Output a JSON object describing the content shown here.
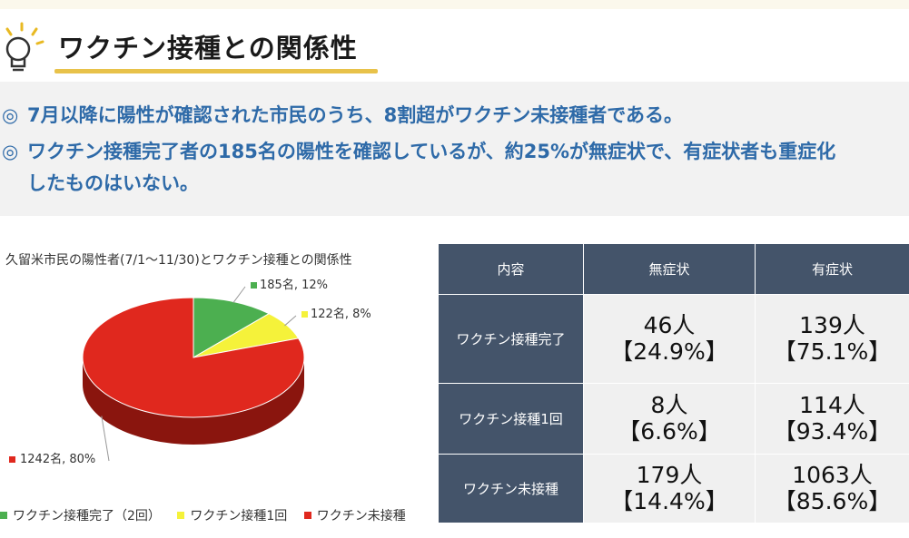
{
  "header": {
    "title": "ワクチン接種との関係性"
  },
  "summary": {
    "bullet_mark": "◎",
    "line1": "7月以降に陽性が確認された市民のうち、8割超がワクチン未接種者である。",
    "line2": "ワクチン接種完了者の185名の陽性を確認しているが、約25%が無症状で、有症状者も重症化",
    "line2_cont": "したものはいない。"
  },
  "chart_data": {
    "type": "pie",
    "title": "久留米市民の陽性者(7/1～11/30)とワクチン接種との関係性",
    "categories": [
      "ワクチン接種完了（2回）",
      "ワクチン接種1回",
      "ワクチン未接種"
    ],
    "values": [
      185,
      122,
      1242
    ],
    "percents": [
      12,
      8,
      80
    ],
    "data_labels": [
      "185名, 12%",
      "122名, 8%",
      "1242名, 80%"
    ],
    "colors": [
      "#4caf50",
      "#f5f23a",
      "#e0281e"
    ],
    "legend_position": "bottom",
    "style": "3d"
  },
  "table": {
    "headers": [
      "内容",
      "無症状",
      "有症状"
    ],
    "rows": [
      {
        "label": "ワクチン接種完了",
        "asym_count": "46人",
        "asym_pct": "【24.9%】",
        "sym_count": "139人",
        "sym_pct": "【75.1%】"
      },
      {
        "label": "ワクチン接種1回",
        "asym_count": "8人",
        "asym_pct": "【6.6%】",
        "sym_count": "114人",
        "sym_pct": "【93.4%】"
      },
      {
        "label": "ワクチン未接種",
        "asym_count": "179人",
        "asym_pct": "【14.4%】",
        "sym_count": "1063人",
        "sym_pct": "【85.6%】"
      }
    ]
  }
}
